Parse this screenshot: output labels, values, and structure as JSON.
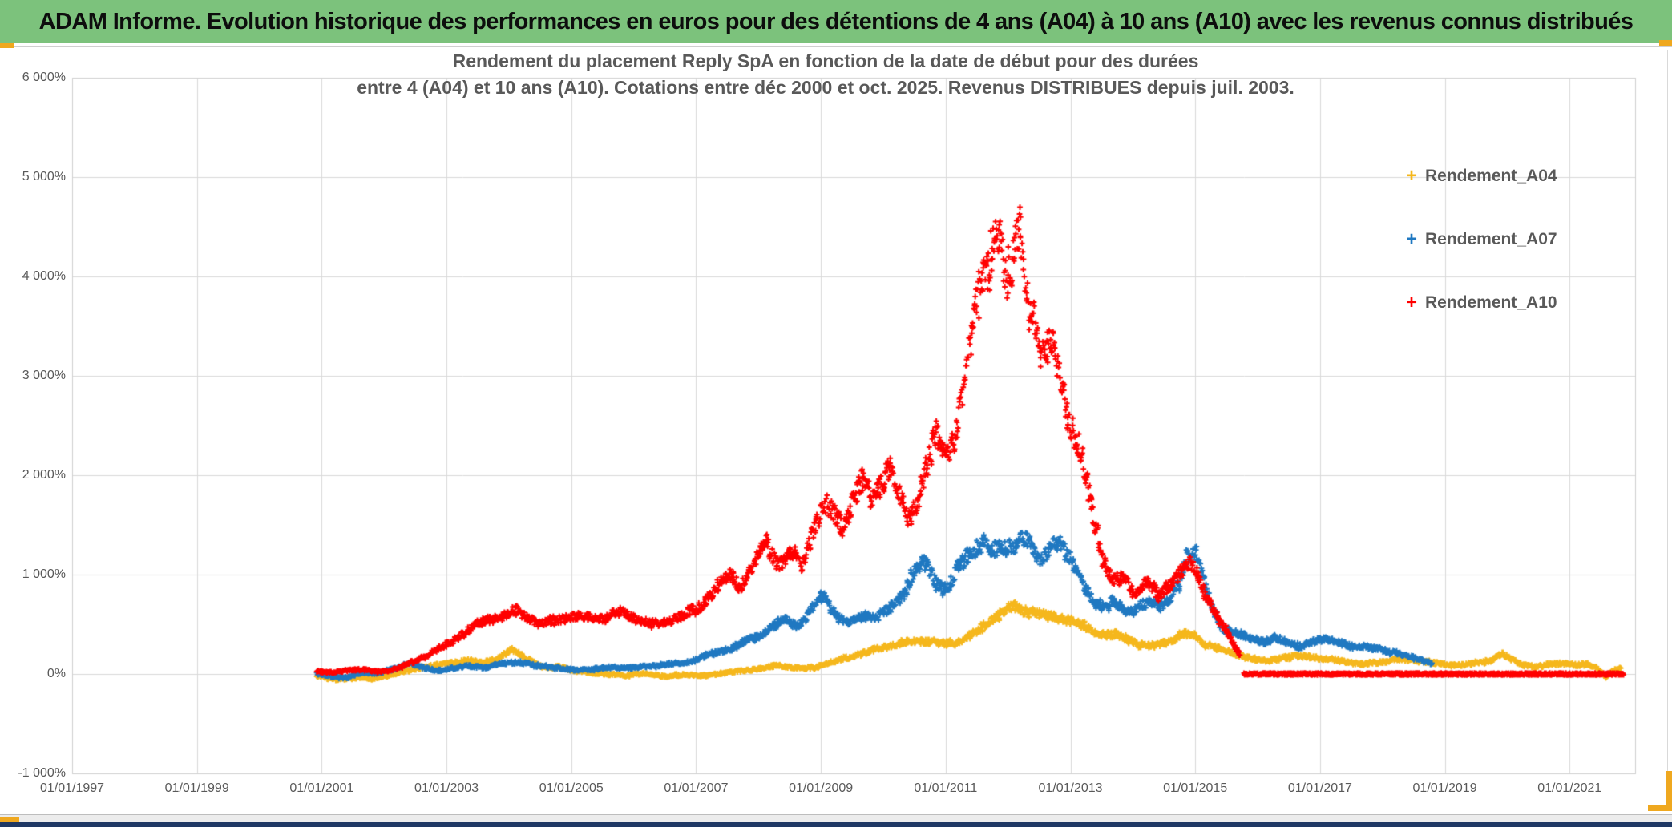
{
  "banner": {
    "title": "ADAM Informe. Evolution historique des performances en euros pour des détentions de 4 ans (A04) à 10 ans (A10) avec les revenus connus distribués",
    "bg_color": "#7cc27c"
  },
  "chart_data": {
    "type": "scatter",
    "marker": "plus",
    "title_lines": [
      "Rendement du placement Reply SpA en fonction de la date de début pour des durées",
      "entre 4 (A04) et 10 ans (A10). Cotations entre déc 2000 et oct. 2025. Revenus DISTRIBUES depuis juil. 2003."
    ],
    "xlabel": "",
    "ylabel": "",
    "grid": true,
    "legend_position": "right",
    "gridline_color": "#d9d9d9",
    "x_range_years": [
      1997.0,
      2022.05
    ],
    "ylim": [
      -1000,
      6000
    ],
    "x_ticks": [
      {
        "year": 1997,
        "label": "01/01/1997"
      },
      {
        "year": 1999,
        "label": "01/01/1999"
      },
      {
        "year": 2001,
        "label": "01/01/2001"
      },
      {
        "year": 2003,
        "label": "01/01/2003"
      },
      {
        "year": 2005,
        "label": "01/01/2005"
      },
      {
        "year": 2007,
        "label": "01/01/2007"
      },
      {
        "year": 2009,
        "label": "01/01/2009"
      },
      {
        "year": 2011,
        "label": "01/01/2011"
      },
      {
        "year": 2013,
        "label": "01/01/2013"
      },
      {
        "year": 2015,
        "label": "01/01/2015"
      },
      {
        "year": 2017,
        "label": "01/01/2017"
      },
      {
        "year": 2019,
        "label": "01/01/2019"
      },
      {
        "year": 2021,
        "label": "01/01/2021"
      }
    ],
    "y_ticks": [
      {
        "value": 6000,
        "label": "6 000%"
      },
      {
        "value": 5000,
        "label": "5 000%"
      },
      {
        "value": 4000,
        "label": "4 000%"
      },
      {
        "value": 3000,
        "label": "3 000%"
      },
      {
        "value": 2000,
        "label": "2 000%"
      },
      {
        "value": 1000,
        "label": "1 000%"
      },
      {
        "value": 0,
        "label": "0%"
      },
      {
        "value": -1000,
        "label": "-1 000%"
      }
    ],
    "series": [
      {
        "name": "Rendement_A04",
        "color": "#f5b71c",
        "points": [
          [
            2000.92,
            -15
          ],
          [
            2001.1,
            -45
          ],
          [
            2001.35,
            -55
          ],
          [
            2001.6,
            -30
          ],
          [
            2001.85,
            -45
          ],
          [
            2002.1,
            -10
          ],
          [
            2002.4,
            40
          ],
          [
            2002.7,
            75
          ],
          [
            2003.0,
            100
          ],
          [
            2003.3,
            145
          ],
          [
            2003.6,
            115
          ],
          [
            2003.85,
            170
          ],
          [
            2004.05,
            235
          ],
          [
            2004.2,
            195
          ],
          [
            2004.4,
            115
          ],
          [
            2004.6,
            55
          ],
          [
            2004.8,
            75
          ],
          [
            2005.0,
            35
          ],
          [
            2005.3,
            15
          ],
          [
            2005.6,
            -5
          ],
          [
            2005.9,
            -15
          ],
          [
            2006.2,
            5
          ],
          [
            2006.5,
            -25
          ],
          [
            2006.8,
            -5
          ],
          [
            2007.1,
            -20
          ],
          [
            2007.4,
            5
          ],
          [
            2007.7,
            30
          ],
          [
            2008.0,
            50
          ],
          [
            2008.3,
            85
          ],
          [
            2008.6,
            60
          ],
          [
            2008.9,
            65
          ],
          [
            2009.1,
            105
          ],
          [
            2009.4,
            155
          ],
          [
            2009.7,
            205
          ],
          [
            2010.0,
            280
          ],
          [
            2010.3,
            305
          ],
          [
            2010.6,
            330
          ],
          [
            2010.9,
            300
          ],
          [
            2011.2,
            330
          ],
          [
            2011.5,
            420
          ],
          [
            2011.7,
            520
          ],
          [
            2011.9,
            620
          ],
          [
            2012.1,
            680
          ],
          [
            2012.3,
            650
          ],
          [
            2012.5,
            610
          ],
          [
            2012.7,
            565
          ],
          [
            2012.9,
            545
          ],
          [
            2013.1,
            505
          ],
          [
            2013.3,
            455
          ],
          [
            2013.5,
            415
          ],
          [
            2013.7,
            385
          ],
          [
            2013.9,
            345
          ],
          [
            2014.1,
            295
          ],
          [
            2014.3,
            285
          ],
          [
            2014.5,
            320
          ],
          [
            2014.7,
            370
          ],
          [
            2014.85,
            400
          ],
          [
            2015.0,
            370
          ],
          [
            2015.15,
            300
          ],
          [
            2015.35,
            255
          ],
          [
            2015.55,
            225
          ],
          [
            2015.75,
            185
          ],
          [
            2015.95,
            150
          ],
          [
            2016.15,
            130
          ],
          [
            2016.45,
            165
          ],
          [
            2016.75,
            185
          ],
          [
            2017.05,
            155
          ],
          [
            2017.35,
            125
          ],
          [
            2017.65,
            100
          ],
          [
            2017.95,
            120
          ],
          [
            2018.25,
            150
          ],
          [
            2018.55,
            130
          ],
          [
            2018.85,
            110
          ],
          [
            2019.15,
            90
          ],
          [
            2019.45,
            100
          ],
          [
            2019.7,
            125
          ],
          [
            2019.92,
            205
          ],
          [
            2020.05,
            150
          ],
          [
            2020.25,
            95
          ],
          [
            2020.45,
            70
          ],
          [
            2020.65,
            90
          ],
          [
            2020.9,
            110
          ],
          [
            2021.1,
            90
          ],
          [
            2021.3,
            95
          ],
          [
            2021.45,
            60
          ],
          [
            2021.58,
            -35
          ],
          [
            2021.7,
            40
          ],
          [
            2021.82,
            55
          ]
        ]
      },
      {
        "name": "Rendement_A07",
        "color": "#1f78c1",
        "points": [
          [
            2000.92,
            5
          ],
          [
            2001.15,
            -25
          ],
          [
            2001.4,
            -40
          ],
          [
            2001.65,
            15
          ],
          [
            2001.9,
            5
          ],
          [
            2002.15,
            50
          ],
          [
            2002.4,
            115
          ],
          [
            2002.6,
            65
          ],
          [
            2002.85,
            35
          ],
          [
            2003.1,
            55
          ],
          [
            2003.35,
            85
          ],
          [
            2003.6,
            60
          ],
          [
            2003.9,
            105
          ],
          [
            2004.15,
            125
          ],
          [
            2004.45,
            85
          ],
          [
            2004.75,
            60
          ],
          [
            2005.05,
            40
          ],
          [
            2005.35,
            50
          ],
          [
            2005.65,
            70
          ],
          [
            2005.95,
            60
          ],
          [
            2006.25,
            80
          ],
          [
            2006.55,
            100
          ],
          [
            2006.85,
            115
          ],
          [
            2007.15,
            175
          ],
          [
            2007.45,
            245
          ],
          [
            2007.75,
            315
          ],
          [
            2008.0,
            380
          ],
          [
            2008.2,
            450
          ],
          [
            2008.45,
            545
          ],
          [
            2008.65,
            495
          ],
          [
            2008.85,
            640
          ],
          [
            2009.02,
            790
          ],
          [
            2009.15,
            690
          ],
          [
            2009.3,
            545
          ],
          [
            2009.45,
            480
          ],
          [
            2009.6,
            555
          ],
          [
            2009.75,
            615
          ],
          [
            2009.9,
            580
          ],
          [
            2010.1,
            650
          ],
          [
            2010.3,
            800
          ],
          [
            2010.5,
            1000
          ],
          [
            2010.68,
            1090
          ],
          [
            2010.85,
            950
          ],
          [
            2011.0,
            860
          ],
          [
            2011.15,
            1000
          ],
          [
            2011.3,
            1140
          ],
          [
            2011.45,
            1240
          ],
          [
            2011.6,
            1300
          ],
          [
            2011.75,
            1200
          ],
          [
            2011.9,
            1280
          ],
          [
            2012.05,
            1340
          ],
          [
            2012.2,
            1390
          ],
          [
            2012.35,
            1290
          ],
          [
            2012.5,
            1150
          ],
          [
            2012.65,
            1240
          ],
          [
            2012.8,
            1300
          ],
          [
            2012.95,
            1190
          ],
          [
            2013.1,
            1080
          ],
          [
            2013.25,
            890
          ],
          [
            2013.4,
            700
          ],
          [
            2013.55,
            650
          ],
          [
            2013.7,
            745
          ],
          [
            2013.85,
            645
          ],
          [
            2014.0,
            600
          ],
          [
            2014.15,
            695
          ],
          [
            2014.3,
            790
          ],
          [
            2014.45,
            700
          ],
          [
            2014.6,
            745
          ],
          [
            2014.75,
            890
          ],
          [
            2014.88,
            1190
          ],
          [
            2015.0,
            1240
          ],
          [
            2015.1,
            990
          ],
          [
            2015.25,
            690
          ],
          [
            2015.4,
            500
          ],
          [
            2015.55,
            450
          ],
          [
            2015.7,
            400
          ],
          [
            2015.9,
            345
          ],
          [
            2016.1,
            320
          ],
          [
            2016.3,
            355
          ],
          [
            2016.5,
            315
          ],
          [
            2016.7,
            290
          ],
          [
            2016.9,
            320
          ],
          [
            2017.1,
            350
          ],
          [
            2017.3,
            315
          ],
          [
            2017.5,
            270
          ],
          [
            2017.7,
            295
          ],
          [
            2017.9,
            255
          ],
          [
            2018.1,
            215
          ],
          [
            2018.3,
            195
          ],
          [
            2018.5,
            160
          ],
          [
            2018.65,
            125
          ],
          [
            2018.8,
            100
          ]
        ]
      },
      {
        "name": "Rendement_A10",
        "color": "#ff0000",
        "points": [
          [
            2000.92,
            25
          ],
          [
            2001.15,
            15
          ],
          [
            2001.4,
            35
          ],
          [
            2001.65,
            45
          ],
          [
            2001.9,
            25
          ],
          [
            2002.1,
            35
          ],
          [
            2002.3,
            75
          ],
          [
            2002.55,
            145
          ],
          [
            2002.8,
            230
          ],
          [
            2003.0,
            300
          ],
          [
            2003.2,
            380
          ],
          [
            2003.45,
            470
          ],
          [
            2003.7,
            545
          ],
          [
            2003.95,
            600
          ],
          [
            2004.1,
            650
          ],
          [
            2004.3,
            585
          ],
          [
            2004.5,
            480
          ],
          [
            2004.7,
            520
          ],
          [
            2004.9,
            565
          ],
          [
            2005.1,
            600
          ],
          [
            2005.3,
            575
          ],
          [
            2005.5,
            555
          ],
          [
            2005.7,
            610
          ],
          [
            2005.9,
            580
          ],
          [
            2006.1,
            555
          ],
          [
            2006.35,
            510
          ],
          [
            2006.6,
            545
          ],
          [
            2006.8,
            580
          ],
          [
            2007.0,
            620
          ],
          [
            2007.2,
            780
          ],
          [
            2007.4,
            950
          ],
          [
            2007.55,
            1000
          ],
          [
            2007.7,
            890
          ],
          [
            2007.9,
            1040
          ],
          [
            2008.1,
            1290
          ],
          [
            2008.3,
            1140
          ],
          [
            2008.5,
            1240
          ],
          [
            2008.7,
            1090
          ],
          [
            2008.9,
            1490
          ],
          [
            2009.05,
            1690
          ],
          [
            2009.2,
            1540
          ],
          [
            2009.35,
            1440
          ],
          [
            2009.5,
            1780
          ],
          [
            2009.65,
            1990
          ],
          [
            2009.8,
            1760
          ],
          [
            2009.95,
            1890
          ],
          [
            2010.1,
            2090
          ],
          [
            2010.25,
            1790
          ],
          [
            2010.4,
            1490
          ],
          [
            2010.55,
            1740
          ],
          [
            2010.7,
            2190
          ],
          [
            2010.85,
            2480
          ],
          [
            2011.0,
            2100
          ],
          [
            2011.15,
            2390
          ],
          [
            2011.3,
            2890
          ],
          [
            2011.45,
            3390
          ],
          [
            2011.6,
            3890
          ],
          [
            2011.7,
            4290
          ],
          [
            2011.8,
            4750
          ],
          [
            2011.9,
            4390
          ],
          [
            2012.0,
            3940
          ],
          [
            2012.1,
            4190
          ],
          [
            2012.2,
            4490
          ],
          [
            2012.3,
            3890
          ],
          [
            2012.45,
            3390
          ],
          [
            2012.6,
            3090
          ],
          [
            2012.75,
            3290
          ],
          [
            2012.9,
            2890
          ],
          [
            2013.0,
            2590
          ],
          [
            2013.1,
            2390
          ],
          [
            2013.25,
            1990
          ],
          [
            2013.4,
            1490
          ],
          [
            2013.55,
            1090
          ],
          [
            2013.7,
            890
          ],
          [
            2013.85,
            990
          ],
          [
            2014.0,
            840
          ],
          [
            2014.2,
            940
          ],
          [
            2014.4,
            790
          ],
          [
            2014.6,
            890
          ],
          [
            2014.78,
            1000
          ],
          [
            2014.92,
            1090
          ],
          [
            2015.05,
            990
          ],
          [
            2015.2,
            790
          ],
          [
            2015.35,
            590
          ],
          [
            2015.5,
            420
          ],
          [
            2015.62,
            290
          ],
          [
            2015.72,
            190
          ]
        ],
        "zero_tail_years": [
          2015.78,
          2021.87
        ]
      }
    ]
  },
  "colors": {
    "banner_green": "#7cc27c",
    "title_gray": "#595959",
    "gridline": "#d9d9d9",
    "navy_strip": "#1f3864",
    "selection_handle_orange": "#efa81f"
  }
}
